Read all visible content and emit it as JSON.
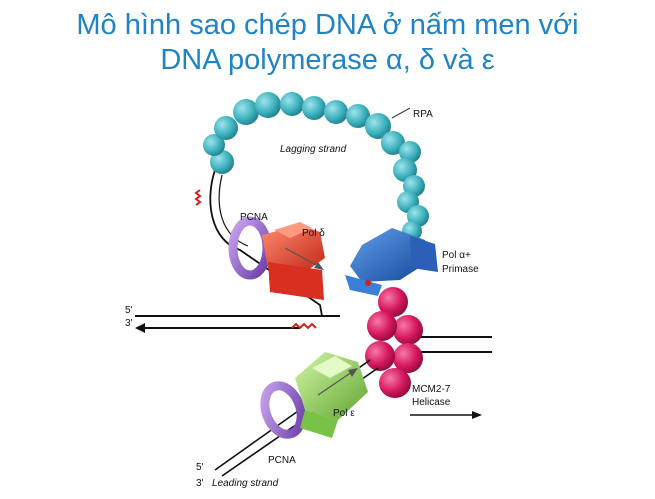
{
  "title": {
    "line1": "Mô hình sao chép DNA ở nấm men với",
    "line2": "DNA polymerase α, δ và ε"
  },
  "labels": {
    "rpa": "RPA",
    "lagging_strand": "Lagging strand",
    "pcna_top": "PCNA",
    "pol_delta": "Pol δ",
    "pol_alpha_1": "Pol α+",
    "pol_alpha_2": "Primase",
    "five_prime_top": "5'",
    "three_prime_top": "3'",
    "mcm_1": "MCM2-7",
    "mcm_2": "Helicase",
    "pol_epsilon": "Pol ε",
    "pcna_bottom": "PCNA",
    "five_prime_bottom": "5'",
    "three_prime_bottom": "3'",
    "leading_strand": "Leading strand"
  },
  "colors": {
    "title": "#1f84c6",
    "rpa": "#3fb3bf",
    "pcna": "#8a5cc0",
    "pol_delta": "#e8402a",
    "pol_alpha": "#2f6fc8",
    "mcm": "#d8185f",
    "pol_epsilon": "#8fd65a",
    "primer": "#d42020"
  }
}
